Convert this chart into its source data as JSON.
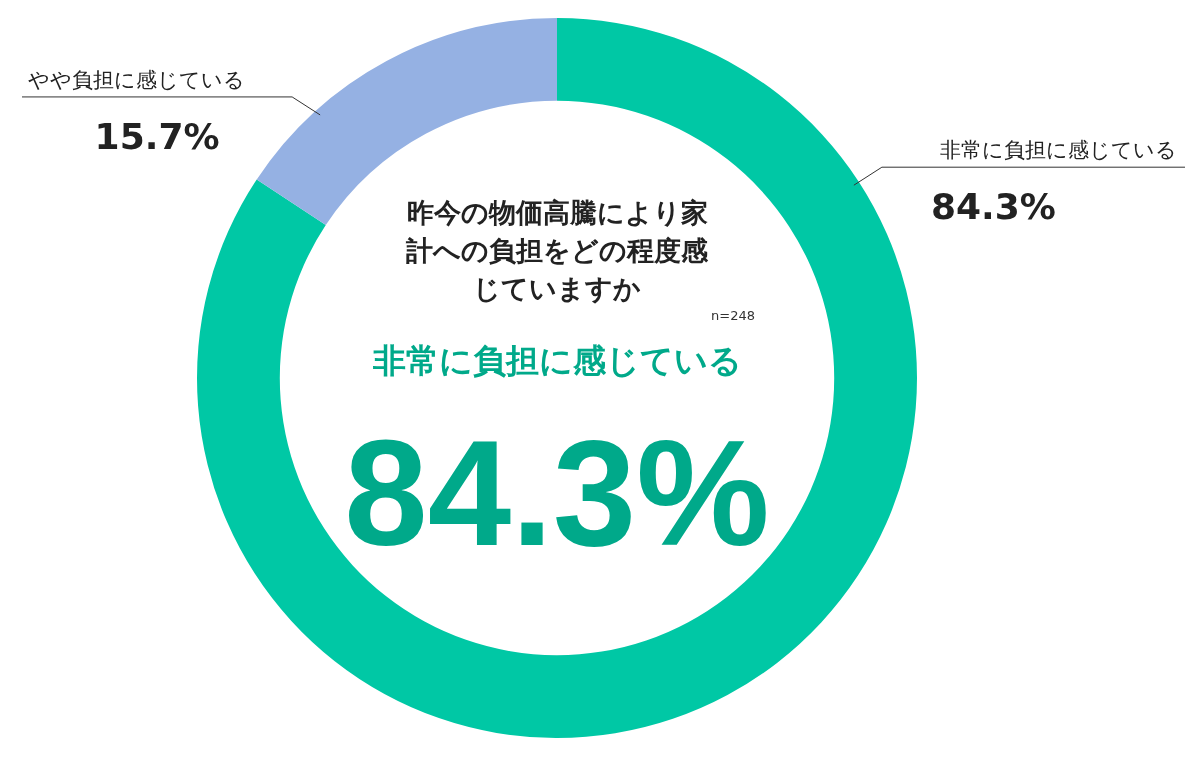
{
  "chart_data": {
    "type": "donut",
    "title": "昨今の物価高騰により家計への負担をどの程度感じていますか",
    "categories": [
      "非常に負担に感じている",
      "やや負担に感じている"
    ],
    "values": [
      84.3,
      15.7
    ],
    "colors": [
      "#00c8a5",
      "#95b1e3"
    ],
    "value_labels": [
      "84.3%",
      "15.7%"
    ],
    "annotations": [
      "n=248",
      "非常に負担に感じている",
      "84.3%"
    ],
    "legend": false
  }
}
